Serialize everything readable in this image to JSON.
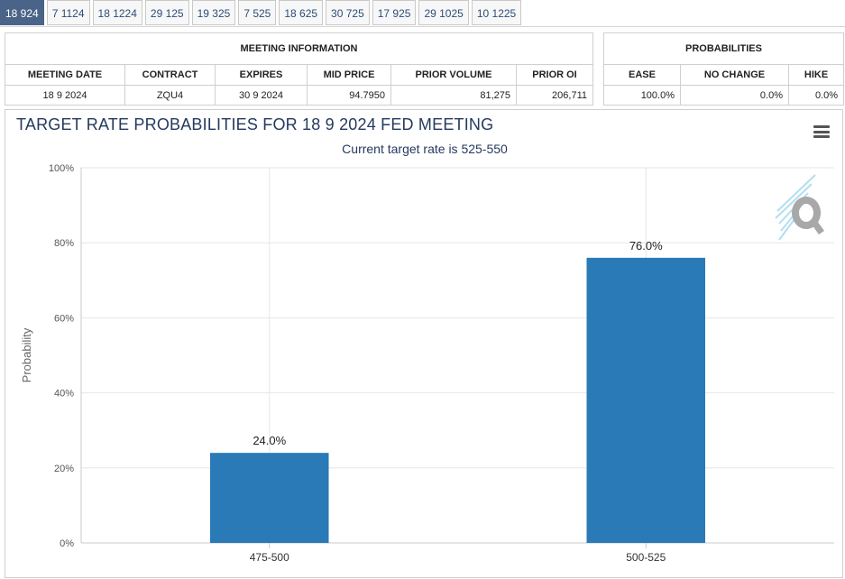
{
  "tabs": [
    "18 924",
    "7 1124",
    "18 1224",
    "29 125",
    "19 325",
    "7 525",
    "18 625",
    "30 725",
    "17 925",
    "29 1025",
    "10 1225"
  ],
  "active_tab": 0,
  "meeting_info": {
    "header": "MEETING INFORMATION",
    "columns": [
      "MEETING DATE",
      "CONTRACT",
      "EXPIRES",
      "MID PRICE",
      "PRIOR VOLUME",
      "PRIOR OI"
    ],
    "row": [
      "18 9 2024",
      "ZQU4",
      "30 9 2024",
      "94.7950",
      "81,275",
      "206,711"
    ]
  },
  "probabilities": {
    "header": "PROBABILITIES",
    "columns": [
      "EASE",
      "NO CHANGE",
      "HIKE"
    ],
    "row": [
      "100.0%",
      "0.0%",
      "0.0%"
    ]
  },
  "colors": {
    "bar": "#2a7ab8",
    "tab_active": "#4a6388",
    "title": "#253a5e"
  },
  "chart_data": {
    "type": "bar",
    "title": "TARGET RATE PROBABILITIES FOR 18 9 2024 FED MEETING",
    "subtitle": "Current target rate is 525-550",
    "categories": [
      "475-500",
      "500-525"
    ],
    "values": [
      24.0,
      76.0
    ],
    "data_labels": [
      "24.0%",
      "76.0%"
    ],
    "ylabel": "Probability",
    "xlabel": "",
    "ylim": [
      0,
      100
    ],
    "yticks": [
      "0%",
      "20%",
      "40%",
      "60%",
      "80%",
      "100%"
    ],
    "grid": true
  }
}
